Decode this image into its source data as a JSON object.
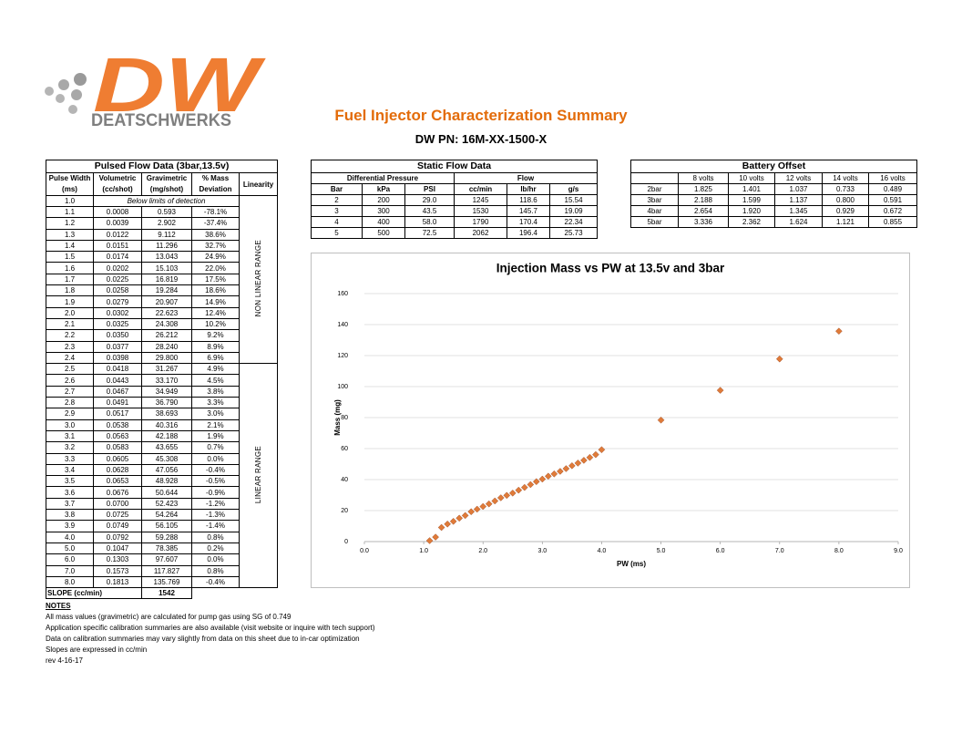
{
  "logo": {
    "mark": "DW",
    "name": "DEATSCHWERKS"
  },
  "header": {
    "title": "Fuel Injector Characterization Summary",
    "subtitle": "DW PN: 16M-XX-1500-X"
  },
  "pulsed": {
    "title": "Pulsed Flow Data (3bar,13.5v)",
    "header": [
      "Pulse Width",
      "Volumetric",
      "Gravimetric",
      "% Mass"
    ],
    "units": [
      "(ms)",
      "(cc/shot)",
      "(mg/shot)",
      "Deviation"
    ],
    "linearity_header": "Linearity",
    "first_row": {
      "pw": "1.0",
      "note": "Below limits of detection"
    },
    "ranges": [
      "NON LINEAR RANGE",
      "LINEAR RANGE"
    ],
    "rows": [
      [
        "1.1",
        "0.0008",
        "0.593",
        "-78.1%"
      ],
      [
        "1.2",
        "0.0039",
        "2.902",
        "-37.4%"
      ],
      [
        "1.3",
        "0.0122",
        "9.112",
        "38.6%"
      ],
      [
        "1.4",
        "0.0151",
        "11.296",
        "32.7%"
      ],
      [
        "1.5",
        "0.0174",
        "13.043",
        "24.9%"
      ],
      [
        "1.6",
        "0.0202",
        "15.103",
        "22.0%"
      ],
      [
        "1.7",
        "0.0225",
        "16.819",
        "17.5%"
      ],
      [
        "1.8",
        "0.0258",
        "19.284",
        "18.6%"
      ],
      [
        "1.9",
        "0.0279",
        "20.907",
        "14.9%"
      ],
      [
        "2.0",
        "0.0302",
        "22.623",
        "12.4%"
      ],
      [
        "2.1",
        "0.0325",
        "24.308",
        "10.2%"
      ],
      [
        "2.2",
        "0.0350",
        "26.212",
        "9.2%"
      ],
      [
        "2.3",
        "0.0377",
        "28.240",
        "8.9%"
      ],
      [
        "2.4",
        "0.0398",
        "29.800",
        "6.9%"
      ],
      [
        "2.5",
        "0.0418",
        "31.267",
        "4.9%"
      ],
      [
        "2.6",
        "0.0443",
        "33.170",
        "4.5%"
      ],
      [
        "2.7",
        "0.0467",
        "34.949",
        "3.8%"
      ],
      [
        "2.8",
        "0.0491",
        "36.790",
        "3.3%"
      ],
      [
        "2.9",
        "0.0517",
        "38.693",
        "3.0%"
      ],
      [
        "3.0",
        "0.0538",
        "40.316",
        "2.1%"
      ],
      [
        "3.1",
        "0.0563",
        "42.188",
        "1.9%"
      ],
      [
        "3.2",
        "0.0583",
        "43.655",
        "0.7%"
      ],
      [
        "3.3",
        "0.0605",
        "45.308",
        "0.0%"
      ],
      [
        "3.4",
        "0.0628",
        "47.056",
        "-0.4%"
      ],
      [
        "3.5",
        "0.0653",
        "48.928",
        "-0.5%"
      ],
      [
        "3.6",
        "0.0676",
        "50.644",
        "-0.9%"
      ],
      [
        "3.7",
        "0.0700",
        "52.423",
        "-1.2%"
      ],
      [
        "3.8",
        "0.0725",
        "54.264",
        "-1.3%"
      ],
      [
        "3.9",
        "0.0749",
        "56.105",
        "-1.4%"
      ],
      [
        "4.0",
        "0.0792",
        "59.288",
        "0.8%"
      ],
      [
        "5.0",
        "0.1047",
        "78.385",
        "0.2%"
      ],
      [
        "6.0",
        "0.1303",
        "97.607",
        "0.0%"
      ],
      [
        "7.0",
        "0.1573",
        "117.827",
        "0.8%"
      ],
      [
        "8.0",
        "0.1813",
        "135.769",
        "-0.4%"
      ]
    ],
    "slope_label": "SLOPE (cc/min)",
    "slope": "1542"
  },
  "static": {
    "title": "Static Flow Data",
    "groups": [
      "Differential Pressure",
      "Flow"
    ],
    "header": [
      "Bar",
      "kPa",
      "PSI",
      "cc/min",
      "lb/hr",
      "g/s"
    ],
    "rows": [
      [
        "2",
        "200",
        "29.0",
        "1245",
        "118.6",
        "15.54"
      ],
      [
        "3",
        "300",
        "43.5",
        "1530",
        "145.7",
        "19.09"
      ],
      [
        "4",
        "400",
        "58.0",
        "1790",
        "170.4",
        "22.34"
      ],
      [
        "5",
        "500",
        "72.5",
        "2062",
        "196.4",
        "25.73"
      ]
    ]
  },
  "battery": {
    "title": "Battery Offset",
    "header": [
      "8 volts",
      "10 volts",
      "12 volts",
      "14 volts",
      "16 volts"
    ],
    "rows": [
      [
        "2bar",
        "1.825",
        "1.401",
        "1.037",
        "0.733",
        "0.489"
      ],
      [
        "3bar",
        "2.188",
        "1.599",
        "1.137",
        "0.800",
        "0.591"
      ],
      [
        "4bar",
        "2.654",
        "1.920",
        "1.345",
        "0.929",
        "0.672"
      ],
      [
        "5bar",
        "3.336",
        "2.362",
        "1.624",
        "1.121",
        "0.855"
      ]
    ]
  },
  "chart_data": {
    "type": "scatter",
    "title": "Injection Mass vs PW at 13.5v and 3bar",
    "x_label": "PW (ms)",
    "y_label": "Mass (mg)",
    "color": "#e07b39",
    "grid": true,
    "x": [
      1.1,
      1.2,
      1.3,
      1.4,
      1.5,
      1.6,
      1.7,
      1.8,
      1.9,
      2.0,
      2.1,
      2.2,
      2.3,
      2.4,
      2.5,
      2.6,
      2.7,
      2.8,
      2.9,
      3.0,
      3.1,
      3.2,
      3.3,
      3.4,
      3.5,
      3.6,
      3.7,
      3.8,
      3.9,
      4.0,
      5.0,
      6.0,
      7.0,
      8.0
    ],
    "values": [
      0.593,
      2.902,
      9.112,
      11.296,
      13.043,
      15.103,
      16.819,
      19.284,
      20.907,
      22.623,
      24.308,
      26.212,
      28.24,
      29.8,
      31.267,
      33.17,
      34.949,
      36.79,
      38.693,
      40.316,
      42.188,
      43.655,
      45.308,
      47.056,
      48.928,
      50.644,
      52.423,
      54.264,
      56.105,
      59.288,
      78.385,
      97.607,
      117.827,
      135.769
    ],
    "xlim": [
      0,
      9
    ],
    "xticks": [
      {
        "value": 0,
        "label": "0.0"
      },
      {
        "value": 1,
        "label": "1.0"
      },
      {
        "value": 2,
        "label": "2.0"
      },
      {
        "value": 3,
        "label": "3.0"
      },
      {
        "value": 4,
        "label": "4.0"
      },
      {
        "value": 5,
        "label": "5.0"
      },
      {
        "value": 6,
        "label": "6.0"
      },
      {
        "value": 7,
        "label": "7.0"
      },
      {
        "value": 8,
        "label": "8.0"
      },
      {
        "value": 9,
        "label": "9.0"
      }
    ],
    "ylim": [
      0,
      160
    ],
    "yticks": [
      0,
      20,
      40,
      60,
      80,
      100,
      120,
      140,
      160
    ]
  },
  "notes": {
    "title": "NOTES",
    "lines": [
      "All mass values (gravimetric) are calculated for pump gas using SG of 0.749",
      "Application specific calibration summaries are also available (visit website or inquire with tech support)",
      "Data on calibration summaries may vary slightly from data on this sheet due to in-car optimization",
      "Slopes are expressed in cc/min",
      "rev 4-16-17"
    ]
  }
}
